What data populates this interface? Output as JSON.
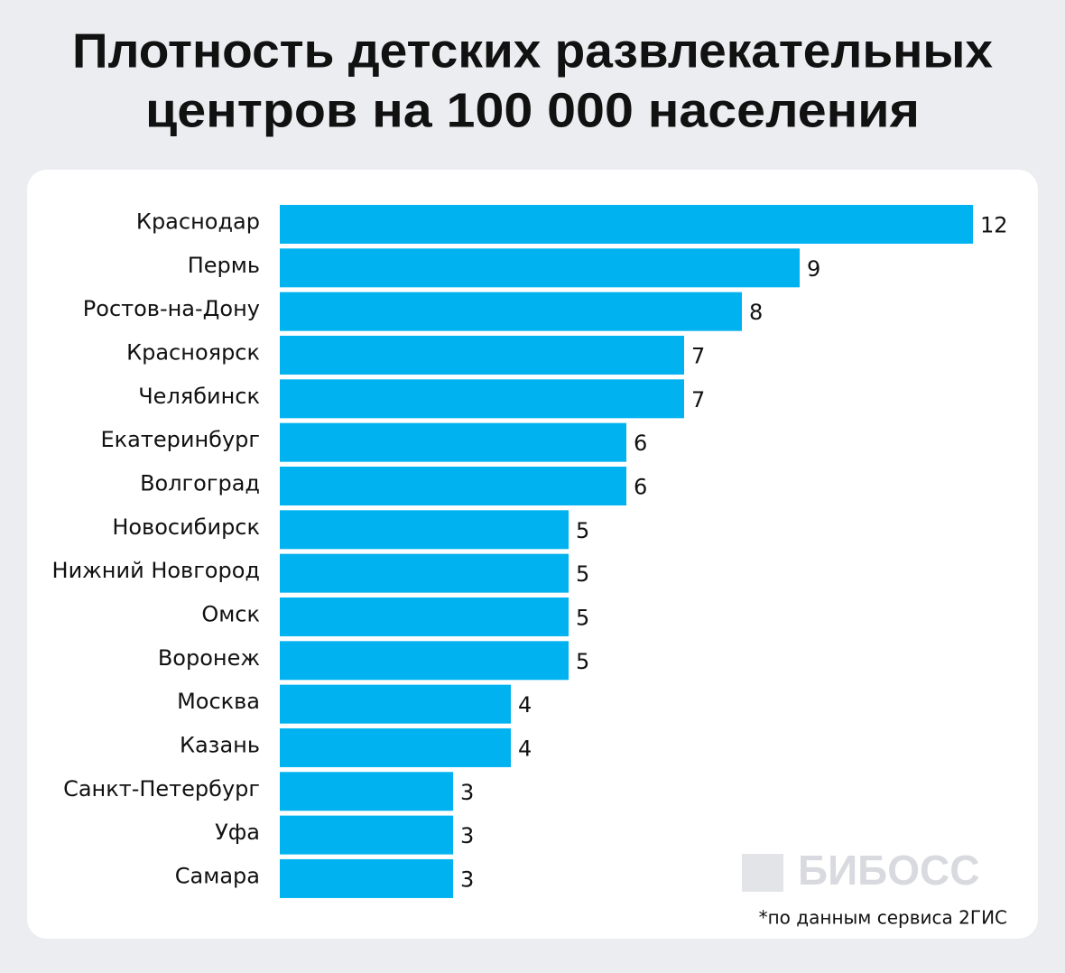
{
  "chart_data": {
    "type": "bar",
    "orientation": "horizontal",
    "title": [
      "Плотность детских развлекательных",
      "центров на 100 000 населения"
    ],
    "categories": [
      "Краснодар",
      "Пермь",
      "Ростов-на-Дону",
      "Красноярск",
      "Челябинск",
      "Екатеринбург",
      "Волгоград",
      "Новосибирск",
      "Нижний Новгород",
      "Омск",
      "Воронеж",
      "Москва",
      "Казань",
      "Санкт-Петербург",
      "Уфа",
      "Самара"
    ],
    "values": [
      12,
      9,
      8,
      7,
      7,
      6,
      6,
      5,
      5,
      5,
      5,
      4,
      4,
      3,
      3,
      3
    ],
    "color": "#00b2ef",
    "watermark": "БИБОСС",
    "note": "*по данным сервиса 2ГИС"
  }
}
